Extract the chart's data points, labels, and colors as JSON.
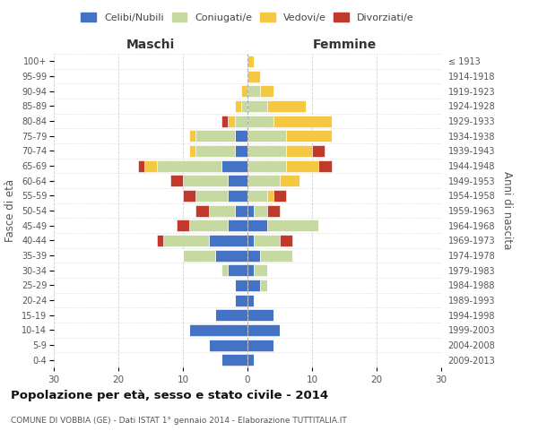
{
  "age_groups": [
    "0-4",
    "5-9",
    "10-14",
    "15-19",
    "20-24",
    "25-29",
    "30-34",
    "35-39",
    "40-44",
    "45-49",
    "50-54",
    "55-59",
    "60-64",
    "65-69",
    "70-74",
    "75-79",
    "80-84",
    "85-89",
    "90-94",
    "95-99",
    "100+"
  ],
  "birth_years": [
    "2009-2013",
    "2004-2008",
    "1999-2003",
    "1994-1998",
    "1989-1993",
    "1984-1988",
    "1979-1983",
    "1974-1978",
    "1969-1973",
    "1964-1968",
    "1959-1963",
    "1954-1958",
    "1949-1953",
    "1944-1948",
    "1939-1943",
    "1934-1938",
    "1929-1933",
    "1924-1928",
    "1919-1923",
    "1914-1918",
    "≤ 1913"
  ],
  "males": {
    "celibi": [
      4,
      6,
      9,
      5,
      2,
      2,
      3,
      5,
      6,
      3,
      2,
      3,
      3,
      4,
      2,
      2,
      0,
      0,
      0,
      0,
      0
    ],
    "coniugati": [
      0,
      0,
      0,
      0,
      0,
      0,
      1,
      5,
      7,
      6,
      4,
      5,
      7,
      10,
      6,
      6,
      2,
      1,
      0,
      0,
      0
    ],
    "vedovi": [
      0,
      0,
      0,
      0,
      0,
      0,
      0,
      0,
      0,
      0,
      0,
      0,
      0,
      2,
      1,
      1,
      1,
      1,
      1,
      0,
      0
    ],
    "divorziati": [
      0,
      0,
      0,
      0,
      0,
      0,
      0,
      0,
      1,
      2,
      2,
      2,
      2,
      1,
      0,
      0,
      1,
      0,
      0,
      0,
      0
    ]
  },
  "females": {
    "nubili": [
      1,
      4,
      5,
      4,
      1,
      2,
      1,
      2,
      1,
      3,
      1,
      0,
      0,
      0,
      0,
      0,
      0,
      0,
      0,
      0,
      0
    ],
    "coniugate": [
      0,
      0,
      0,
      0,
      0,
      1,
      2,
      5,
      4,
      8,
      2,
      3,
      5,
      6,
      6,
      6,
      4,
      3,
      2,
      0,
      0
    ],
    "vedove": [
      0,
      0,
      0,
      0,
      0,
      0,
      0,
      0,
      0,
      0,
      0,
      1,
      3,
      5,
      4,
      7,
      9,
      6,
      2,
      2,
      1
    ],
    "divorziate": [
      0,
      0,
      0,
      0,
      0,
      0,
      0,
      0,
      2,
      0,
      2,
      2,
      0,
      2,
      2,
      0,
      0,
      0,
      0,
      0,
      0
    ]
  },
  "colors": {
    "celibi": "#4472c4",
    "coniugati": "#c5d9a0",
    "vedovi": "#f5c842",
    "divorziati": "#c0392b"
  },
  "xlim": 30,
  "title": "Popolazione per età, sesso e stato civile - 2014",
  "subtitle": "COMUNE DI VOBBIA (GE) - Dati ISTAT 1° gennaio 2014 - Elaborazione TUTTITALIA.IT",
  "ylabel": "Fasce di età",
  "right_ylabel": "Anni di nascita",
  "xlabel_left": "Maschi",
  "xlabel_right": "Femmine",
  "legend_labels": [
    "Celibi/Nubili",
    "Coniugati/e",
    "Vedovi/e",
    "Divorziati/e"
  ],
  "background_color": "#ffffff",
  "grid_color": "#cccccc"
}
